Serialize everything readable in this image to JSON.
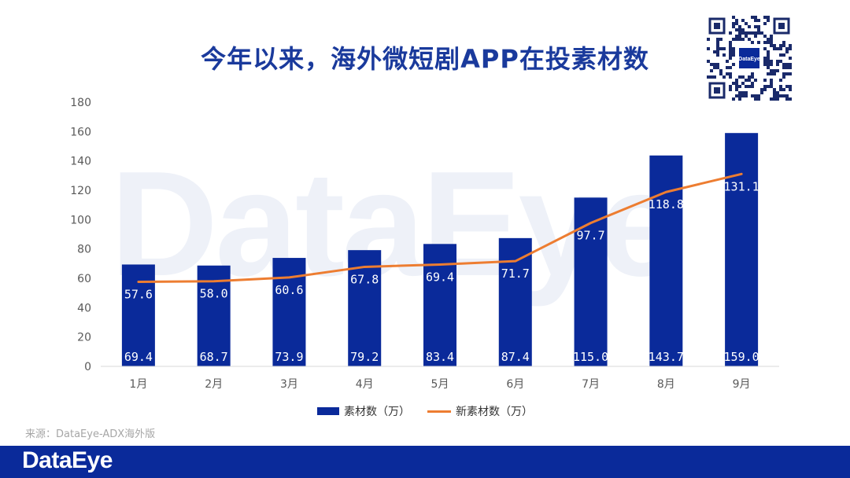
{
  "title": "今年以来，海外微短剧APP在投素材数",
  "watermark": "DataEye",
  "qr_label": "DataEye",
  "source": "来源：DataEye-ADX海外版",
  "footer_logo": "DataEye",
  "colors": {
    "title": "#1a3a9c",
    "bar": "#0a2a9a",
    "line": "#ed7d31",
    "footer": "#0a2a9a"
  },
  "chart_data": {
    "type": "bar",
    "categories": [
      "1月",
      "2月",
      "3月",
      "4月",
      "5月",
      "6月",
      "7月",
      "8月",
      "9月"
    ],
    "series": [
      {
        "name": "素材数（万）",
        "type": "bar",
        "values": [
          69.4,
          68.7,
          73.9,
          79.2,
          83.4,
          87.4,
          115.0,
          143.7,
          159.0
        ]
      },
      {
        "name": "新素材数（万）",
        "type": "line",
        "values": [
          57.6,
          58.0,
          60.6,
          67.8,
          69.4,
          71.7,
          97.7,
          118.8,
          131.1
        ]
      }
    ],
    "ylim": [
      0,
      180
    ],
    "yticks": [
      0,
      20,
      40,
      60,
      80,
      100,
      120,
      140,
      160,
      180
    ],
    "grid": false,
    "legend": "bottom"
  }
}
